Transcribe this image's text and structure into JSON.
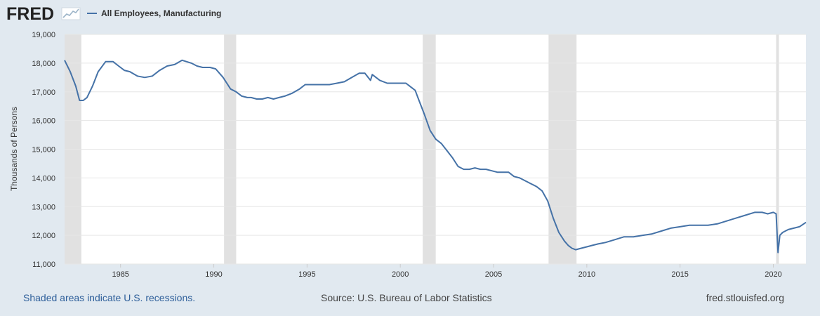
{
  "header": {
    "logo_text": "FRED",
    "legend_label": "All Employees, Manufacturing"
  },
  "footer": {
    "recessions_note": "Shaded areas indicate U.S. recessions.",
    "source": "Source: U.S. Bureau of Labor Statistics",
    "site": "fred.stlouisfed.org"
  },
  "colors": {
    "series": "#4572a7",
    "recession": "#e1e1e1",
    "plot_bg": "#ffffff",
    "page_bg": "#e1e9f0"
  },
  "icons": {
    "logo_graph": "fred-graph-icon"
  },
  "chart_data": {
    "type": "line",
    "title": "",
    "xlabel": "",
    "ylabel": "Thousands of Persons",
    "xlim": [
      1982.0,
      2021.75
    ],
    "ylim": [
      11000,
      19000
    ],
    "y_ticks": [
      11000,
      12000,
      13000,
      14000,
      15000,
      16000,
      17000,
      18000,
      19000
    ],
    "y_tick_labels": [
      "11,000",
      "12,000",
      "13,000",
      "14,000",
      "15,000",
      "16,000",
      "17,000",
      "18,000",
      "19,000"
    ],
    "x_ticks": [
      1985,
      1990,
      1995,
      2000,
      2005,
      2010,
      2015,
      2020
    ],
    "x_tick_labels": [
      "1985",
      "1990",
      "1995",
      "2000",
      "2005",
      "2010",
      "2015",
      "2020"
    ],
    "grid": "horizontal",
    "legend_placement": "top-left",
    "recessions": [
      [
        1982.0,
        1982.9
      ],
      [
        1990.55,
        1991.2
      ],
      [
        2001.2,
        2001.9
      ],
      [
        2007.95,
        2009.45
      ],
      [
        2020.15,
        2020.3
      ]
    ],
    "series": [
      {
        "name": "All Employees, Manufacturing",
        "x": [
          1982.0,
          1982.3,
          1982.6,
          1982.8,
          1983.0,
          1983.2,
          1983.5,
          1983.8,
          1984.2,
          1984.6,
          1984.9,
          1985.2,
          1985.5,
          1985.9,
          1986.3,
          1986.7,
          1987.1,
          1987.5,
          1987.9,
          1988.3,
          1988.8,
          1989.1,
          1989.4,
          1989.8,
          1990.1,
          1990.3,
          1990.5,
          1990.7,
          1990.9,
          1991.2,
          1991.5,
          1991.8,
          1992.0,
          1992.3,
          1992.6,
          1992.9,
          1993.2,
          1993.5,
          1993.8,
          1994.2,
          1994.6,
          1994.9,
          1995.2,
          1995.5,
          1995.8,
          1996.2,
          1996.6,
          1997.0,
          1997.4,
          1997.8,
          1998.1,
          1998.4,
          1998.5,
          1998.6,
          1998.9,
          1999.3,
          1999.7,
          2000.0,
          2000.3,
          2000.5,
          2000.8,
          2001.0,
          2001.3,
          2001.6,
          2001.9,
          2002.2,
          2002.5,
          2002.8,
          2003.1,
          2003.4,
          2003.7,
          2004.0,
          2004.3,
          2004.6,
          2004.9,
          2005.2,
          2005.5,
          2005.8,
          2006.1,
          2006.4,
          2006.7,
          2007.0,
          2007.3,
          2007.6,
          2007.9,
          2008.2,
          2008.5,
          2008.8,
          2009.0,
          2009.2,
          2009.4,
          2009.7,
          2010.0,
          2010.3,
          2010.6,
          2011.0,
          2011.5,
          2012.0,
          2012.5,
          2013.0,
          2013.5,
          2014.0,
          2014.5,
          2015.0,
          2015.5,
          2016.0,
          2016.5,
          2017.0,
          2017.5,
          2018.0,
          2018.5,
          2019.0,
          2019.4,
          2019.7,
          2020.0,
          2020.15,
          2020.25,
          2020.35,
          2020.5,
          2020.8,
          2021.1,
          2021.4,
          2021.75
        ],
        "values": [
          18100,
          17700,
          17200,
          16700,
          16700,
          16800,
          17200,
          17700,
          18050,
          18050,
          17900,
          17750,
          17700,
          17550,
          17500,
          17550,
          17750,
          17900,
          17950,
          18100,
          18000,
          17900,
          17850,
          17850,
          17800,
          17650,
          17500,
          17300,
          17100,
          17000,
          16850,
          16800,
          16800,
          16750,
          16750,
          16800,
          16750,
          16800,
          16850,
          16950,
          17100,
          17250,
          17250,
          17250,
          17250,
          17250,
          17300,
          17350,
          17500,
          17650,
          17650,
          17400,
          17600,
          17550,
          17400,
          17300,
          17300,
          17300,
          17300,
          17200,
          17050,
          16700,
          16200,
          15650,
          15350,
          15200,
          14950,
          14700,
          14400,
          14300,
          14300,
          14350,
          14300,
          14300,
          14250,
          14200,
          14200,
          14200,
          14050,
          14000,
          13900,
          13800,
          13700,
          13550,
          13200,
          12600,
          12100,
          11800,
          11650,
          11550,
          11500,
          11550,
          11600,
          11650,
          11700,
          11750,
          11850,
          11950,
          11950,
          12000,
          12050,
          12150,
          12250,
          12300,
          12350,
          12350,
          12350,
          12400,
          12500,
          12600,
          12700,
          12800,
          12800,
          12750,
          12800,
          12750,
          11400,
          12000,
          12100,
          12200,
          12250,
          12300,
          12450
        ]
      }
    ]
  }
}
